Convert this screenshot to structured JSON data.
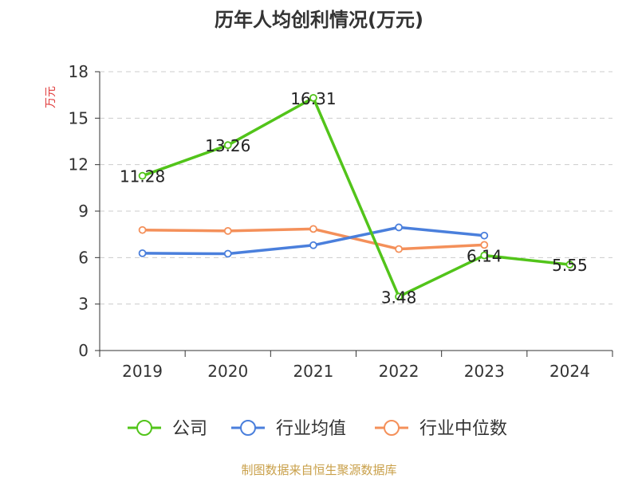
{
  "chart_data": {
    "type": "line",
    "title": "历年人均创利情况(万元)",
    "ylabel": "万元",
    "xlabel": "",
    "categories": [
      "2019",
      "2020",
      "2021",
      "2022",
      "2023",
      "2024"
    ],
    "ylim": [
      0,
      18
    ],
    "yticks": [
      0,
      3,
      6,
      9,
      12,
      15,
      18
    ],
    "grid": true,
    "legend_position": "bottom",
    "series": [
      {
        "name": "公司",
        "color": "#52c41a",
        "values": [
          11.28,
          13.26,
          16.31,
          3.48,
          6.14,
          5.55
        ],
        "labels": [
          "11.28",
          "13.26",
          "16.31",
          "3.48",
          "6.14",
          "5.55"
        ]
      },
      {
        "name": "行业均值",
        "color": "#4a7fdc",
        "values": [
          6.28,
          6.25,
          6.8,
          7.95,
          7.42,
          null
        ]
      },
      {
        "name": "行业中位数",
        "color": "#f4905a",
        "values": [
          7.78,
          7.72,
          7.85,
          6.55,
          6.82,
          null
        ]
      }
    ],
    "source": "制图数据来自恒生聚源数据库"
  }
}
